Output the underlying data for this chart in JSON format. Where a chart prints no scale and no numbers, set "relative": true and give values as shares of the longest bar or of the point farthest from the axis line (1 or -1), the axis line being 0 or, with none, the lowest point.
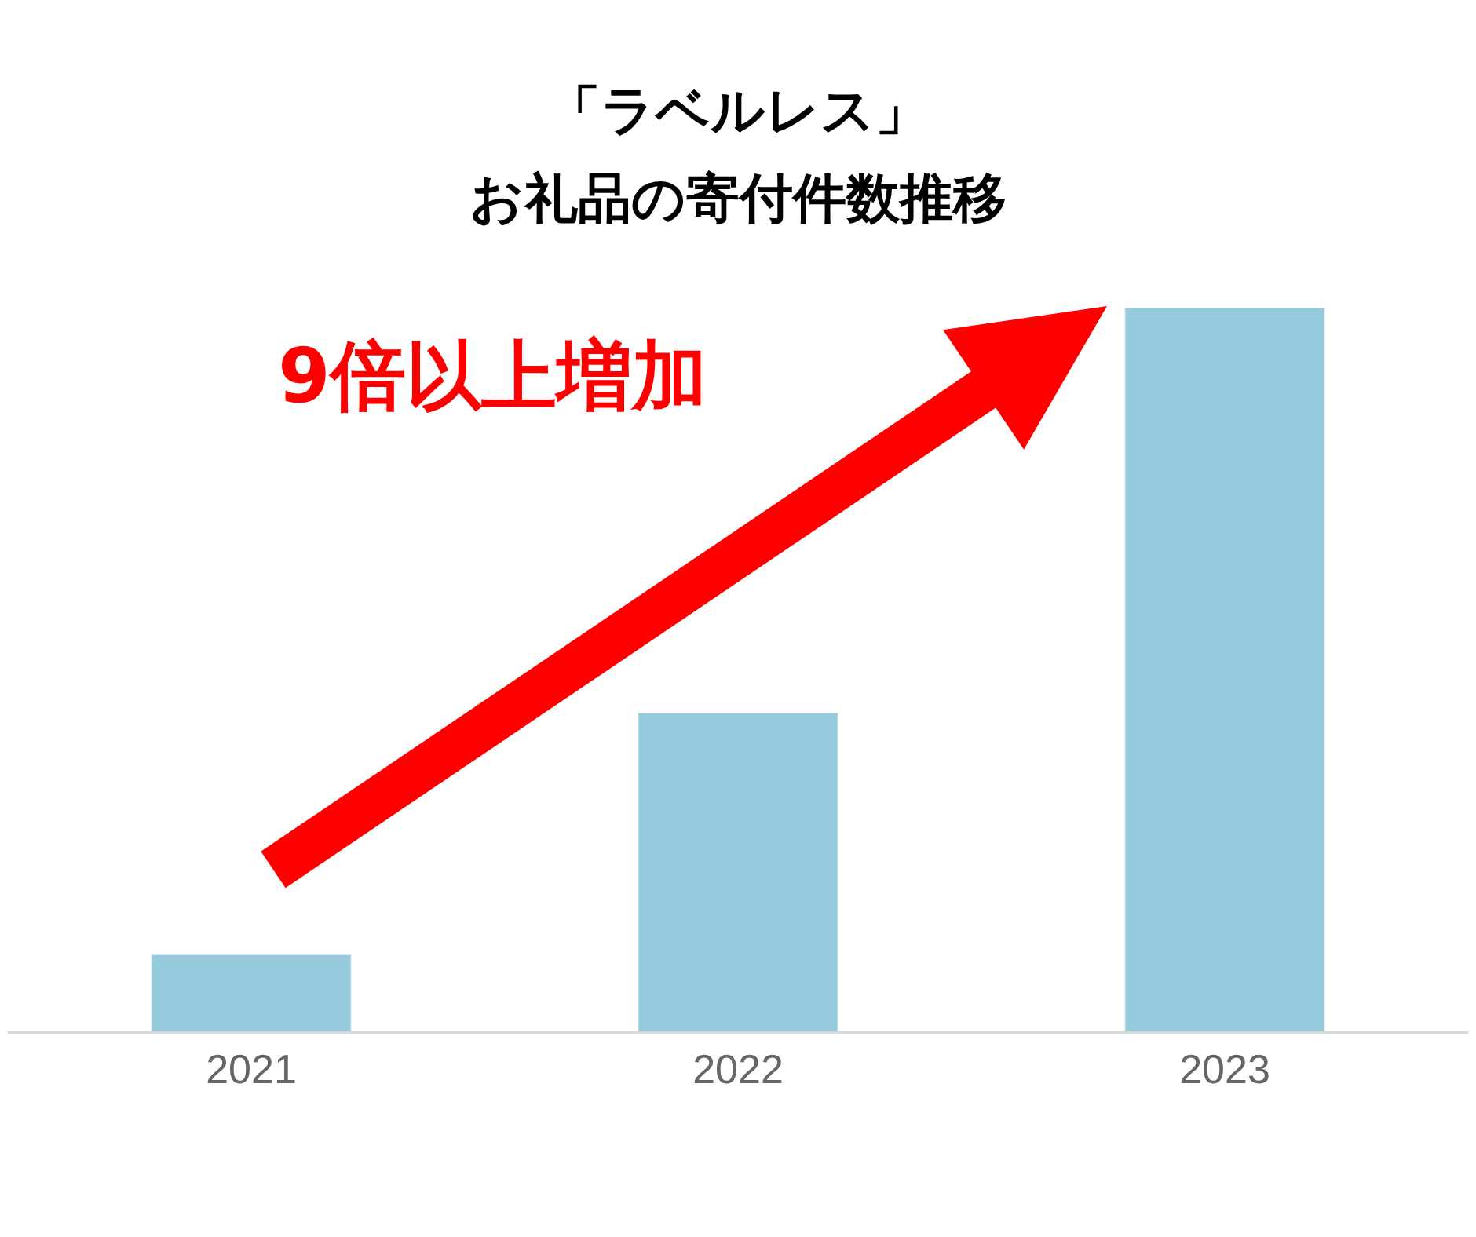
{
  "chart_data": {
    "type": "bar",
    "title": "「ラベルレス」",
    "subtitle": "お礼品の寄付件数推移",
    "categories": [
      "2021",
      "2022",
      "2023"
    ],
    "values": [
      0.106,
      0.44,
      1
    ],
    "color": "#95cbdc",
    "relative": true,
    "annotations": [
      "9倍以上増加"
    ]
  }
}
